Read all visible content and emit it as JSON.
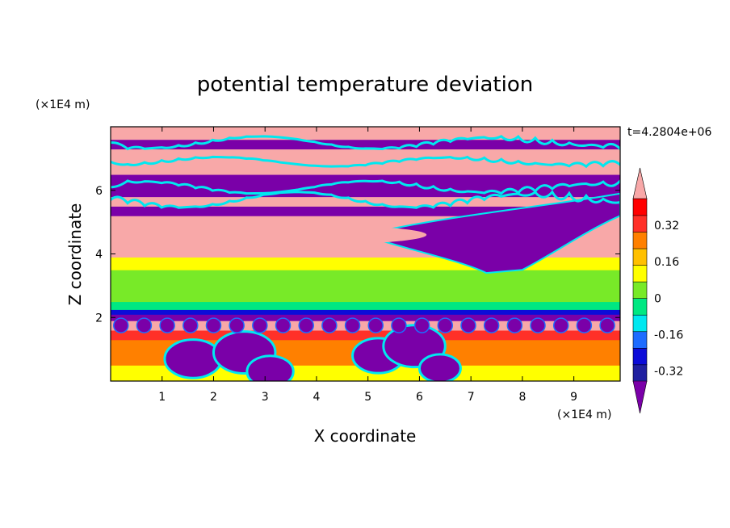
{
  "chart_data": {
    "type": "heatmap",
    "title": "potential temperature deviation",
    "xlabel": "X coordinate",
    "ylabel": "Z coordinate",
    "x_unit": "(×1E4 m)",
    "y_unit": "(×1E4 m)",
    "time_label": "t=4.2804e+06",
    "xlim": [
      0,
      9.9
    ],
    "ylim": [
      0,
      8
    ],
    "x_ticks": [
      1,
      2,
      3,
      4,
      5,
      6,
      7,
      8,
      9
    ],
    "y_ticks": [
      2,
      4,
      6
    ],
    "x_tick_labels": [
      "1",
      "2",
      "3",
      "4",
      "5",
      "6",
      "7",
      "8",
      "9"
    ],
    "y_tick_labels": [
      "2",
      "4",
      "6"
    ],
    "colorbar": {
      "levels": [
        -0.48,
        -0.4,
        -0.32,
        -0.24,
        -0.16,
        -0.08,
        0,
        0.08,
        0.16,
        0.24,
        0.32,
        0.4,
        0.48
      ],
      "colors": [
        "#7a00a8",
        "#2020a0",
        "#0c0cd8",
        "#1e6cff",
        "#00e8f0",
        "#00e882",
        "#78ea28",
        "#ffff00",
        "#ffc000",
        "#ff8000",
        "#ff3028",
        "#ff0000",
        "#f8a8a8"
      ],
      "tick_labels": [
        "0.32",
        "0.16",
        "0",
        "-0.16",
        "-0.32"
      ],
      "tick_values": [
        0.32,
        0.16,
        0,
        -0.16,
        -0.32
      ],
      "extend": "both"
    },
    "layers": [
      {
        "z": [
          0.0,
          0.2
        ],
        "value": 0.1
      },
      {
        "z": [
          0.2,
          0.5
        ],
        "value": 0.12
      },
      {
        "z": [
          0.5,
          0.9
        ],
        "value": 0.24
      },
      {
        "z": [
          0.9,
          1.3
        ],
        "value": 0.2
      },
      {
        "z": [
          1.3,
          1.6
        ],
        "value": 0.28
      },
      {
        "z": [
          1.6,
          1.9
        ],
        "value": 0.5
      },
      {
        "z": [
          1.9,
          2.1
        ],
        "value": -0.45
      },
      {
        "z": [
          2.1,
          2.25
        ],
        "value": -0.3
      },
      {
        "z": [
          2.25,
          2.5
        ],
        "value": -0.04
      },
      {
        "z": [
          2.5,
          2.9
        ],
        "value": 0.02
      },
      {
        "z": [
          2.9,
          3.3
        ],
        "value": -0.03
      },
      {
        "z": [
          3.3,
          3.5
        ],
        "value": 0.03
      },
      {
        "z": [
          3.5,
          3.9
        ],
        "value": 0.12
      },
      {
        "z": [
          3.9,
          4.2
        ],
        "value": 0.5
      },
      {
        "z": [
          4.2,
          5.2
        ],
        "value": 0.5
      },
      {
        "z": [
          5.2,
          5.5
        ],
        "value": -0.45
      },
      {
        "z": [
          5.5,
          5.8
        ],
        "value": 0.5
      },
      {
        "z": [
          5.8,
          6.5
        ],
        "value": -0.45
      },
      {
        "z": [
          6.5,
          7.3
        ],
        "value": 0.5
      },
      {
        "z": [
          7.3,
          7.6
        ],
        "value": -0.45
      },
      {
        "z": [
          7.6,
          8.0
        ],
        "value": 0.5
      }
    ]
  }
}
